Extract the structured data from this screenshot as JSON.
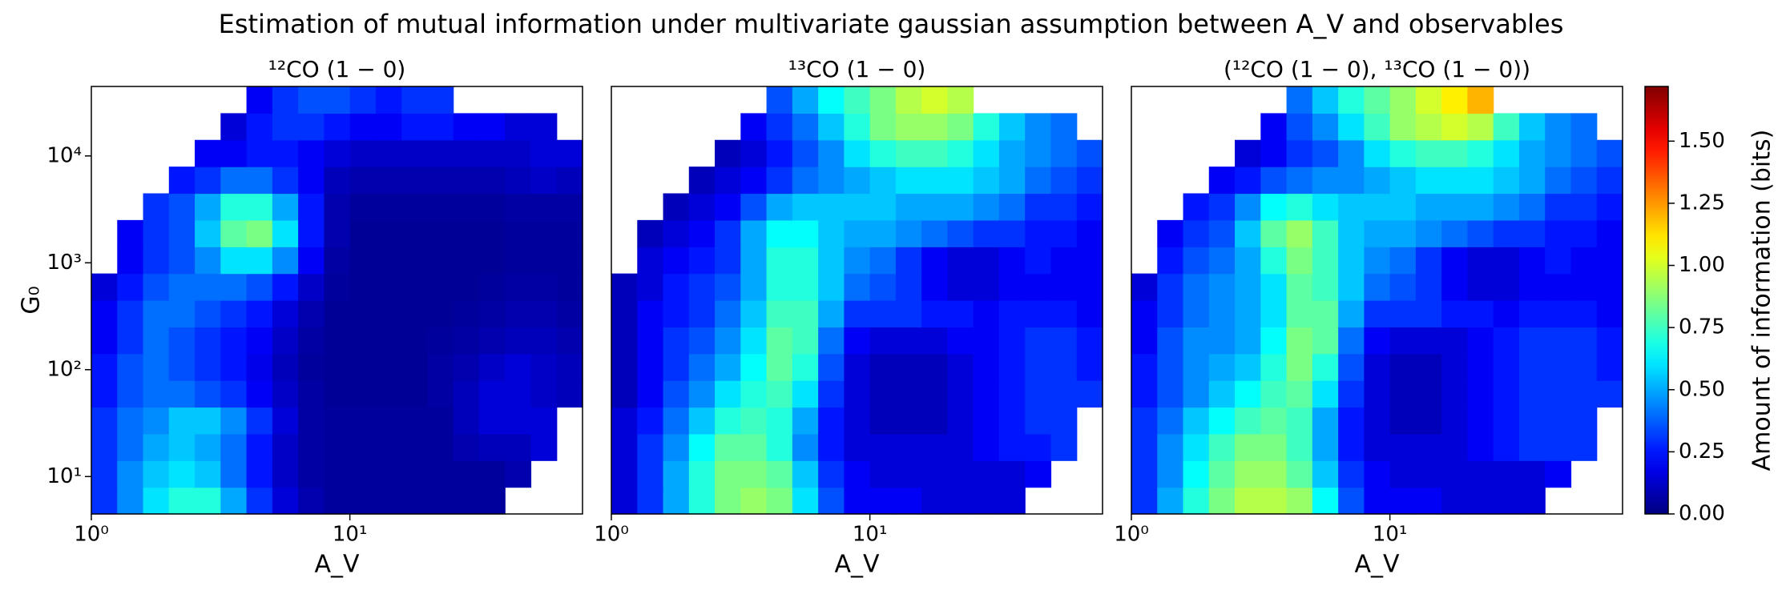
{
  "title": "Estimation of mutual information under multivariate gaussian assumption between A_V and observables",
  "colorbar": {
    "label": "Amount of information (bits)",
    "colormap": "jet",
    "lim": [
      0,
      1.72
    ],
    "ticks": [
      {
        "value": 0,
        "label": "0.00"
      },
      0.25,
      {
        "value": 0.5,
        "label": "0.50"
      },
      0.75,
      {
        "value": 1,
        "label": "1.00"
      },
      1.25,
      {
        "value": 1.5,
        "label": "1.50"
      }
    ]
  },
  "chart_data": [
    {
      "type": "heatmap",
      "title": "¹²CO (1 − 0)",
      "xlabel": "A_V",
      "ylabel": "G₀",
      "xscale": "log",
      "yscale": "log",
      "xlim": [
        1,
        79.43
      ],
      "ylim": [
        4.467,
        44668
      ],
      "xticks": [
        {
          "value": 1,
          "label": "10⁰"
        },
        {
          "value": 10,
          "label": "10¹"
        }
      ],
      "yticks": [
        {
          "value": 10,
          "label": "10¹"
        },
        {
          "value": 100,
          "label": "10²"
        },
        {
          "value": 1000,
          "label": "10³"
        },
        {
          "value": 10000,
          "label": "10⁴"
        }
      ],
      "x_edges": [
        1,
        1.259,
        1.585,
        1.995,
        2.512,
        3.162,
        3.981,
        5.012,
        6.31,
        7.943,
        10,
        12.59,
        15.85,
        19.95,
        25.12,
        31.62,
        39.81,
        50.12,
        63.1,
        79.43
      ],
      "y_edges": [
        4.467,
        7.943,
        14.13,
        25.12,
        44.67,
        79.43,
        141.3,
        251.2,
        446.7,
        794.3,
        1413,
        2512,
        4467,
        7943,
        14125,
        25119,
        44668
      ],
      "values": [
        [
          0.3,
          0.45,
          0.6,
          0.7,
          0.7,
          0.5,
          0.3,
          0.15,
          0.08,
          0.05,
          0.05,
          0.05,
          0.05,
          0.05,
          0.05,
          0.05,
          null,
          null,
          null
        ],
        [
          0.3,
          0.45,
          0.55,
          0.6,
          0.55,
          0.4,
          0.25,
          0.12,
          0.06,
          0.05,
          0.05,
          0.05,
          0.05,
          0.05,
          0.05,
          0.05,
          0.08,
          null,
          null
        ],
        [
          0.3,
          0.4,
          0.5,
          0.55,
          0.5,
          0.4,
          0.25,
          0.12,
          0.06,
          0.05,
          0.05,
          0.05,
          0.05,
          0.05,
          0.08,
          0.1,
          0.1,
          0.15,
          null
        ],
        [
          0.3,
          0.4,
          0.45,
          0.55,
          0.55,
          0.45,
          0.3,
          0.15,
          0.06,
          0.05,
          0.05,
          0.05,
          0.05,
          0.05,
          0.1,
          0.15,
          0.15,
          0.15,
          null
        ],
        [
          0.25,
          0.35,
          0.4,
          0.4,
          0.35,
          0.3,
          0.2,
          0.12,
          0.06,
          0.04,
          0.04,
          0.04,
          0.04,
          0.06,
          0.1,
          0.15,
          0.15,
          0.12,
          0.1
        ],
        [
          0.25,
          0.35,
          0.4,
          0.35,
          0.3,
          0.25,
          0.18,
          0.1,
          0.05,
          0.04,
          0.04,
          0.04,
          0.04,
          0.06,
          0.08,
          0.12,
          0.15,
          0.12,
          0.1
        ],
        [
          0.2,
          0.3,
          0.4,
          0.35,
          0.3,
          0.25,
          0.2,
          0.12,
          0.06,
          0.04,
          0.04,
          0.04,
          0.04,
          0.05,
          0.06,
          0.08,
          0.1,
          0.1,
          0.08
        ],
        [
          0.2,
          0.3,
          0.4,
          0.4,
          0.35,
          0.3,
          0.25,
          0.15,
          0.08,
          0.04,
          0.04,
          0.04,
          0.04,
          0.04,
          0.05,
          0.06,
          0.08,
          0.08,
          0.06
        ],
        [
          0.15,
          0.25,
          0.35,
          0.4,
          0.4,
          0.4,
          0.35,
          0.25,
          0.12,
          0.05,
          0.04,
          0.04,
          0.04,
          0.04,
          0.04,
          0.05,
          0.06,
          0.06,
          0.05
        ],
        [
          null,
          0.2,
          0.3,
          0.35,
          0.45,
          0.6,
          0.6,
          0.45,
          0.2,
          0.06,
          0.04,
          0.04,
          0.04,
          0.04,
          0.04,
          0.04,
          0.05,
          0.05,
          0.05
        ],
        [
          null,
          0.2,
          0.3,
          0.35,
          0.55,
          0.8,
          0.85,
          0.6,
          0.25,
          0.08,
          0.04,
          0.04,
          0.04,
          0.04,
          0.04,
          0.04,
          0.05,
          0.05,
          0.05
        ],
        [
          null,
          null,
          0.3,
          0.35,
          0.5,
          0.7,
          0.7,
          0.5,
          0.25,
          0.08,
          0.05,
          0.05,
          0.05,
          0.05,
          0.05,
          0.05,
          0.06,
          0.06,
          0.06
        ],
        [
          null,
          null,
          null,
          0.25,
          0.3,
          0.4,
          0.4,
          0.3,
          0.2,
          0.1,
          0.08,
          0.08,
          0.08,
          0.08,
          0.08,
          0.08,
          0.1,
          0.12,
          0.1
        ],
        [
          null,
          null,
          null,
          null,
          0.2,
          0.2,
          0.25,
          0.25,
          0.2,
          0.15,
          0.12,
          0.12,
          0.12,
          0.12,
          0.12,
          0.12,
          0.12,
          0.15,
          0.15
        ],
        [
          null,
          null,
          null,
          null,
          null,
          0.15,
          0.25,
          0.3,
          0.3,
          0.25,
          0.2,
          0.2,
          0.25,
          0.25,
          0.2,
          0.2,
          0.15,
          0.15,
          null
        ],
        [
          null,
          null,
          null,
          null,
          null,
          null,
          0.2,
          0.3,
          0.35,
          0.35,
          0.3,
          0.25,
          0.3,
          0.3,
          null,
          null,
          null,
          null,
          null
        ]
      ]
    },
    {
      "type": "heatmap",
      "title": "¹³CO (1 − 0)",
      "xlabel": "A_V",
      "xscale": "log",
      "yscale": "log",
      "xlim": [
        1,
        79.43
      ],
      "ylim": [
        4.467,
        44668
      ],
      "xticks": [
        {
          "value": 1,
          "label": "10⁰"
        },
        {
          "value": 10,
          "label": "10¹"
        }
      ],
      "x_edges": [
        1,
        1.259,
        1.585,
        1.995,
        2.512,
        3.162,
        3.981,
        5.012,
        6.31,
        7.943,
        10,
        12.59,
        15.85,
        19.95,
        25.12,
        31.62,
        39.81,
        50.12,
        63.1,
        79.43
      ],
      "y_edges": [
        4.467,
        7.943,
        14.13,
        25.12,
        44.67,
        79.43,
        141.3,
        251.2,
        446.7,
        794.3,
        1413,
        2512,
        4467,
        7943,
        14125,
        25119,
        44668
      ],
      "values": [
        [
          0.15,
          0.3,
          0.5,
          0.7,
          0.85,
          0.9,
          0.85,
          0.6,
          0.35,
          0.2,
          0.2,
          0.2,
          0.15,
          0.15,
          0.15,
          0.15,
          null,
          null,
          null
        ],
        [
          0.15,
          0.3,
          0.5,
          0.7,
          0.85,
          0.85,
          0.8,
          0.55,
          0.3,
          0.2,
          0.15,
          0.15,
          0.15,
          0.15,
          0.15,
          0.15,
          0.2,
          null,
          null
        ],
        [
          0.15,
          0.3,
          0.45,
          0.65,
          0.8,
          0.8,
          0.7,
          0.45,
          0.25,
          0.15,
          0.15,
          0.15,
          0.15,
          0.15,
          0.2,
          0.25,
          0.25,
          0.3,
          null
        ],
        [
          0.15,
          0.25,
          0.4,
          0.55,
          0.7,
          0.75,
          0.7,
          0.5,
          0.25,
          0.15,
          0.1,
          0.1,
          0.1,
          0.15,
          0.2,
          0.25,
          0.3,
          0.3,
          null
        ],
        [
          0.1,
          0.2,
          0.35,
          0.45,
          0.6,
          0.7,
          0.75,
          0.6,
          0.3,
          0.15,
          0.1,
          0.1,
          0.1,
          0.15,
          0.2,
          0.25,
          0.3,
          0.3,
          0.3
        ],
        [
          0.1,
          0.2,
          0.3,
          0.4,
          0.5,
          0.65,
          0.8,
          0.7,
          0.35,
          0.15,
          0.1,
          0.1,
          0.1,
          0.15,
          0.2,
          0.25,
          0.3,
          0.3,
          0.25
        ],
        [
          0.1,
          0.2,
          0.3,
          0.35,
          0.45,
          0.6,
          0.8,
          0.75,
          0.4,
          0.2,
          0.15,
          0.15,
          0.15,
          0.2,
          0.2,
          0.25,
          0.3,
          0.3,
          0.25
        ],
        [
          0.1,
          0.2,
          0.25,
          0.3,
          0.4,
          0.55,
          0.75,
          0.75,
          0.5,
          0.3,
          0.3,
          0.3,
          0.25,
          0.25,
          0.2,
          0.25,
          0.25,
          0.25,
          0.2
        ],
        [
          0.1,
          0.15,
          0.25,
          0.3,
          0.35,
          0.5,
          0.7,
          0.7,
          0.55,
          0.4,
          0.35,
          0.3,
          0.2,
          0.15,
          0.15,
          0.2,
          0.2,
          0.2,
          0.2
        ],
        [
          null,
          0.15,
          0.2,
          0.25,
          0.3,
          0.5,
          0.7,
          0.7,
          0.55,
          0.45,
          0.4,
          0.3,
          0.2,
          0.15,
          0.15,
          0.2,
          0.25,
          0.2,
          0.2
        ],
        [
          null,
          0.1,
          0.15,
          0.2,
          0.3,
          0.5,
          0.65,
          0.65,
          0.55,
          0.5,
          0.5,
          0.45,
          0.4,
          0.35,
          0.3,
          0.3,
          0.25,
          0.25,
          0.2
        ],
        [
          null,
          null,
          0.1,
          0.15,
          0.2,
          0.35,
          0.5,
          0.55,
          0.55,
          0.55,
          0.55,
          0.5,
          0.5,
          0.5,
          0.45,
          0.4,
          0.3,
          0.3,
          0.25
        ],
        [
          null,
          null,
          null,
          0.1,
          0.15,
          0.2,
          0.3,
          0.4,
          0.45,
          0.5,
          0.55,
          0.6,
          0.6,
          0.6,
          0.55,
          0.5,
          0.4,
          0.35,
          0.3
        ],
        [
          null,
          null,
          null,
          null,
          0.1,
          0.15,
          0.25,
          0.35,
          0.45,
          0.6,
          0.7,
          0.75,
          0.75,
          0.7,
          0.6,
          0.5,
          0.45,
          0.4,
          0.35
        ],
        [
          null,
          null,
          null,
          null,
          null,
          0.2,
          0.3,
          0.4,
          0.55,
          0.7,
          0.85,
          0.9,
          0.9,
          0.85,
          0.7,
          0.55,
          0.45,
          0.4,
          null
        ],
        [
          null,
          null,
          null,
          null,
          null,
          null,
          0.35,
          0.5,
          0.65,
          0.75,
          0.85,
          0.95,
          1.0,
          0.95,
          null,
          null,
          null,
          null,
          null
        ]
      ]
    },
    {
      "type": "heatmap",
      "title": "(¹²CO (1 − 0), ¹³CO (1 − 0))",
      "xlabel": "A_V",
      "xscale": "log",
      "yscale": "log",
      "xlim": [
        1,
        79.43
      ],
      "ylim": [
        4.467,
        44668
      ],
      "xticks": [
        {
          "value": 1,
          "label": "10⁰"
        },
        {
          "value": 10,
          "label": "10¹"
        }
      ],
      "x_edges": [
        1,
        1.259,
        1.585,
        1.995,
        2.512,
        3.162,
        3.981,
        5.012,
        6.31,
        7.943,
        10,
        12.59,
        15.85,
        19.95,
        25.12,
        31.62,
        39.81,
        50.12,
        63.1,
        79.43
      ],
      "y_edges": [
        4.467,
        7.943,
        14.13,
        25.12,
        44.67,
        79.43,
        141.3,
        251.2,
        446.7,
        794.3,
        1413,
        2512,
        4467,
        7943,
        14125,
        25119,
        44668
      ],
      "values": [
        [
          0.3,
          0.5,
          0.7,
          0.85,
          0.95,
          0.95,
          0.9,
          0.65,
          0.35,
          0.2,
          0.2,
          0.2,
          0.15,
          0.15,
          0.15,
          0.15,
          null,
          null,
          null
        ],
        [
          0.3,
          0.45,
          0.65,
          0.8,
          0.9,
          0.9,
          0.8,
          0.55,
          0.3,
          0.2,
          0.15,
          0.15,
          0.15,
          0.15,
          0.15,
          0.15,
          0.2,
          null,
          null
        ],
        [
          0.3,
          0.45,
          0.6,
          0.75,
          0.85,
          0.85,
          0.75,
          0.5,
          0.25,
          0.15,
          0.15,
          0.15,
          0.15,
          0.2,
          0.25,
          0.3,
          0.3,
          0.3,
          null
        ],
        [
          0.3,
          0.4,
          0.55,
          0.65,
          0.75,
          0.8,
          0.75,
          0.5,
          0.25,
          0.15,
          0.1,
          0.1,
          0.15,
          0.2,
          0.25,
          0.3,
          0.3,
          0.3,
          null
        ],
        [
          0.25,
          0.35,
          0.45,
          0.55,
          0.65,
          0.75,
          0.8,
          0.6,
          0.3,
          0.15,
          0.1,
          0.1,
          0.15,
          0.2,
          0.25,
          0.3,
          0.3,
          0.3,
          0.3
        ],
        [
          0.25,
          0.35,
          0.45,
          0.5,
          0.55,
          0.7,
          0.85,
          0.7,
          0.35,
          0.15,
          0.1,
          0.1,
          0.15,
          0.2,
          0.25,
          0.3,
          0.3,
          0.3,
          0.25
        ],
        [
          0.2,
          0.35,
          0.45,
          0.45,
          0.5,
          0.65,
          0.85,
          0.8,
          0.4,
          0.2,
          0.15,
          0.15,
          0.15,
          0.2,
          0.25,
          0.3,
          0.3,
          0.3,
          0.25
        ],
        [
          0.2,
          0.3,
          0.4,
          0.45,
          0.5,
          0.6,
          0.8,
          0.8,
          0.5,
          0.3,
          0.3,
          0.3,
          0.25,
          0.25,
          0.2,
          0.25,
          0.25,
          0.25,
          0.2
        ],
        [
          0.15,
          0.3,
          0.4,
          0.45,
          0.5,
          0.6,
          0.8,
          0.75,
          0.55,
          0.4,
          0.35,
          0.3,
          0.2,
          0.15,
          0.15,
          0.2,
          0.2,
          0.2,
          0.2
        ],
        [
          null,
          0.25,
          0.35,
          0.4,
          0.5,
          0.7,
          0.85,
          0.75,
          0.55,
          0.45,
          0.4,
          0.3,
          0.2,
          0.15,
          0.15,
          0.2,
          0.25,
          0.2,
          0.2
        ],
        [
          null,
          0.2,
          0.3,
          0.35,
          0.55,
          0.8,
          0.9,
          0.75,
          0.55,
          0.5,
          0.5,
          0.45,
          0.4,
          0.35,
          0.3,
          0.3,
          0.25,
          0.25,
          0.2
        ],
        [
          null,
          null,
          0.25,
          0.3,
          0.45,
          0.65,
          0.7,
          0.6,
          0.55,
          0.55,
          0.55,
          0.5,
          0.5,
          0.5,
          0.45,
          0.4,
          0.3,
          0.3,
          0.25
        ],
        [
          null,
          null,
          null,
          0.2,
          0.25,
          0.35,
          0.4,
          0.45,
          0.45,
          0.5,
          0.55,
          0.6,
          0.6,
          0.6,
          0.55,
          0.5,
          0.4,
          0.35,
          0.3
        ],
        [
          null,
          null,
          null,
          null,
          0.15,
          0.2,
          0.3,
          0.35,
          0.45,
          0.6,
          0.7,
          0.75,
          0.75,
          0.7,
          0.6,
          0.5,
          0.45,
          0.4,
          0.35
        ],
        [
          null,
          null,
          null,
          null,
          null,
          0.2,
          0.35,
          0.45,
          0.6,
          0.75,
          0.9,
          0.95,
          1.0,
          0.95,
          0.75,
          0.55,
          0.45,
          0.4,
          null
        ],
        [
          null,
          null,
          null,
          null,
          null,
          null,
          0.4,
          0.55,
          0.7,
          0.8,
          0.9,
          1.0,
          1.1,
          1.2,
          null,
          null,
          null,
          null,
          null
        ]
      ]
    }
  ]
}
